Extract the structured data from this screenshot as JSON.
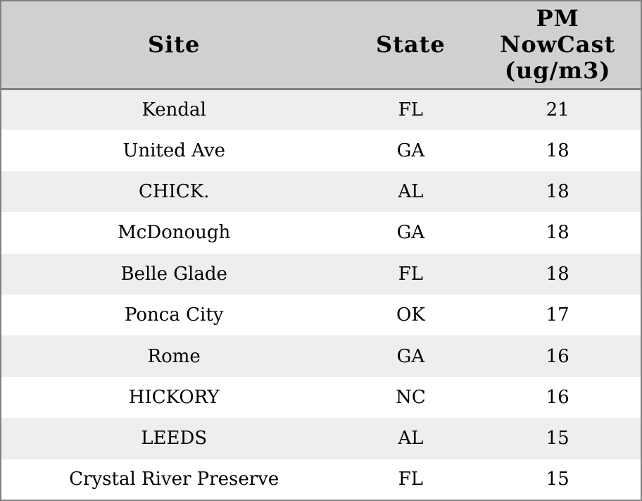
{
  "chart_data": {
    "type": "table",
    "columns": [
      "Site",
      "State",
      "PM NowCast (ug/m3)"
    ],
    "rows": [
      [
        "Kendal",
        "FL",
        21
      ],
      [
        "United Ave",
        "GA",
        18
      ],
      [
        "CHICK.",
        "AL",
        18
      ],
      [
        "McDonough",
        "GA",
        18
      ],
      [
        "Belle Glade",
        "FL",
        18
      ],
      [
        "Ponca City",
        "OK",
        17
      ],
      [
        "Rome",
        "GA",
        16
      ],
      [
        "HICKORY",
        "NC",
        16
      ],
      [
        "LEEDS",
        "AL",
        15
      ],
      [
        "Crystal River Preserve",
        "FL",
        15
      ]
    ],
    "layout": {
      "striped_rows": true,
      "all_text_centered": true,
      "grid": "outer frame and header separator only"
    }
  },
  "colors": {
    "frame_border": "#808080",
    "header_bg": "#d0d0d0",
    "row_stripe": "#eeeeee",
    "row_plain": "#ffffff",
    "text": "#000000"
  }
}
